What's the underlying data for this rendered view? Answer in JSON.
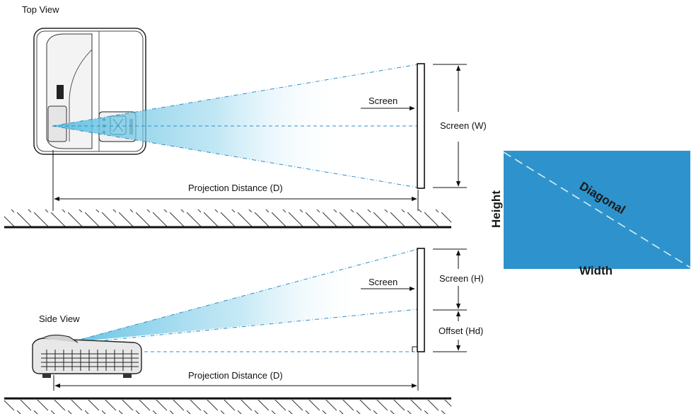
{
  "labels": {
    "top_view": "Top View",
    "side_view": "Side View",
    "screen_top": "Screen",
    "screen_side": "Screen",
    "screen_w": "Screen (W)",
    "screen_h": "Screen (H)",
    "offset": "Offset (Hd)",
    "distance_top": "Projection Distance (D)",
    "distance_side": "Projection Distance (D)",
    "height": "Height",
    "width": "Width",
    "diagonal": "Diagonal"
  },
  "colors": {
    "beam": "#5bbfe0",
    "screen_fill": "#2e93cc",
    "dash_line": "#2f8fc8",
    "diagonal_line": "#d8eef8"
  }
}
